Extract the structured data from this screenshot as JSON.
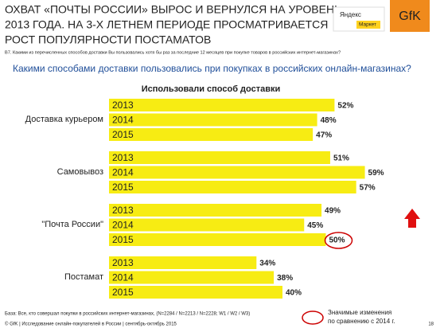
{
  "header": {
    "title_lines": [
      "ОХВАТ «ПОЧТЫ РОССИИ» ВЫРОС И ВЕРНУЛСЯ НА УРОВЕНЬ",
      "2013 ГОДА. НА 3-Х ЛЕТНЕМ ПЕРИОДЕ ПРОСМАТРИВАЕТСЯ",
      "РОСТ ПОПУЛЯРНОСТИ ПОСТАМАТОВ"
    ],
    "question_note": "В7. Какими из перечисленных способов доставки Вы пользовались хотя бы раз за последние 12 месяцев при покупке товаров в российских интернет-магазинах?"
  },
  "logos": {
    "yandex": "Яндекс",
    "market": "Маркет",
    "gfk": "GfK"
  },
  "question": "Какими способами доставки пользовались при покупках в российских онлайн-магазинах?",
  "chart_data": {
    "type": "bar",
    "orientation": "horizontal",
    "title": "Использовали способ доставки",
    "categories": [
      "Доставка курьером",
      "Самовывоз",
      "\"Почта России\"",
      "Постамат"
    ],
    "series": [
      {
        "name": "2013",
        "color": "#f7ec13",
        "values": [
          52,
          51,
          49,
          34
        ],
        "value_labels": [
          "52%",
          "51%",
          "49%",
          "34%"
        ]
      },
      {
        "name": "2014",
        "color": "#f7ec13",
        "values": [
          48,
          59,
          45,
          38
        ],
        "value_labels": [
          "48%",
          "59%",
          "45%",
          "38%"
        ]
      },
      {
        "name": "2015",
        "color": "#f7ec13",
        "values": [
          47,
          57,
          50,
          40
        ],
        "value_labels": [
          "47%",
          "57%",
          "50%",
          "40%"
        ]
      }
    ],
    "significant": [
      {
        "series": 2,
        "category": 2
      }
    ]
  },
  "legend_note": [
    "Значимые изменения",
    "по сравнению с 2014 г."
  ],
  "footer": {
    "base": "База: Все, кто совершал покупки в российских интернет-магазинах, (N=2284 / N=2213 / N=2228; W1 / W2 / W3)",
    "source": "© GfK | Исследование онлайн-покупателей в России | сентябрь-октябрь 2015",
    "page": "18"
  }
}
